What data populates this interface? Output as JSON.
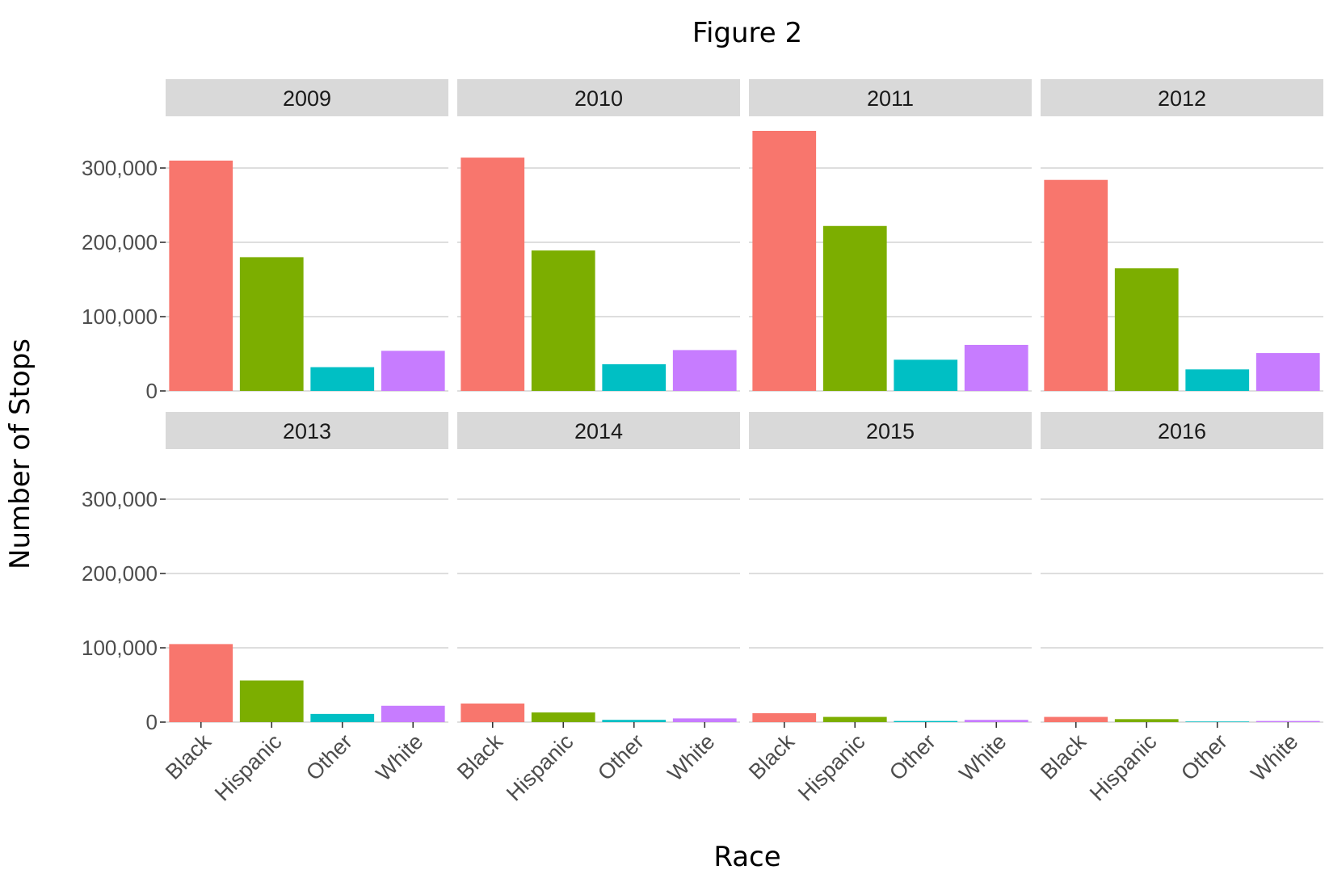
{
  "chart_data": {
    "type": "bar",
    "title": "Figure 2",
    "xlabel": "Race",
    "ylabel": "Number of Stops",
    "categories": [
      "Black",
      "Hispanic",
      "Other",
      "White"
    ],
    "colors": [
      "#F8766D",
      "#7CAE00",
      "#00BFC4",
      "#C77CFF"
    ],
    "ylim": [
      0,
      350000
    ],
    "y_ticks": [
      0,
      100000,
      200000,
      300000
    ],
    "y_tick_labels": [
      "0",
      "100,000",
      "200,000",
      "300,000"
    ],
    "grid": true,
    "legend": "none",
    "facets": [
      {
        "label": "2009",
        "values": [
          310000,
          180000,
          32000,
          54000
        ]
      },
      {
        "label": "2010",
        "values": [
          314000,
          189000,
          36000,
          55000
        ]
      },
      {
        "label": "2011",
        "values": [
          350000,
          222000,
          42000,
          62000
        ]
      },
      {
        "label": "2012",
        "values": [
          284000,
          165000,
          29000,
          51000
        ]
      },
      {
        "label": "2013",
        "values": [
          105000,
          56000,
          11000,
          22000
        ]
      },
      {
        "label": "2014",
        "values": [
          25000,
          13000,
          3000,
          5000
        ]
      },
      {
        "label": "2015",
        "values": [
          12000,
          7000,
          1500,
          3000
        ]
      },
      {
        "label": "2016",
        "values": [
          7000,
          4000,
          800,
          1500
        ]
      }
    ]
  }
}
